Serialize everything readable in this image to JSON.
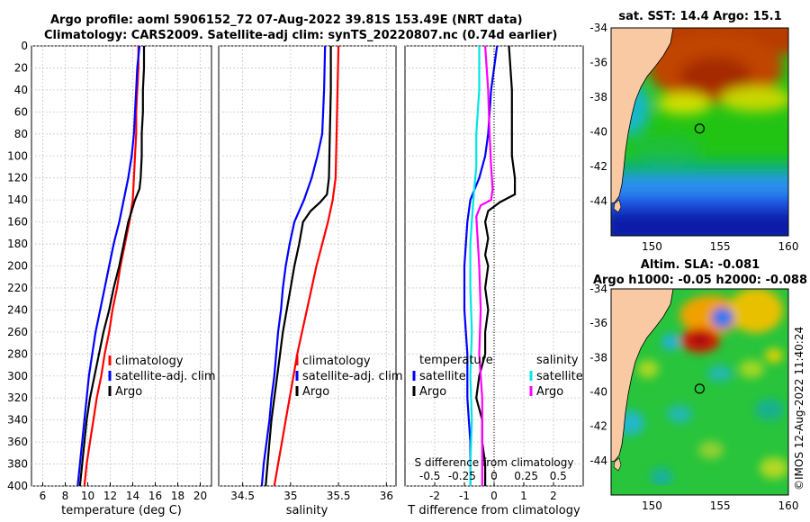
{
  "header": {
    "title_line1": "Argo profile: aoml 5906152_72 07-Aug-2022 39.81S 153.49E (NRT data)",
    "title_line2": "Climatology: CARS2009. Satellite-adj clim: synTS_20220807.nc (0.74d earlier)"
  },
  "credit": "©IMOS 12-Aug-2022 11:40:24",
  "colors": {
    "climatology": "#ff0000",
    "satellite": "#0000ff",
    "argo": "#000000",
    "sat_salinity": "#00e6e6",
    "argo_salinity": "#ff00ff",
    "land": "#f9c9a3",
    "grid": "#c8c8c8"
  },
  "chart_data": [
    {
      "type": "line",
      "name": "temperature-profile",
      "xlabel": "temperature (deg C)",
      "xlim": [
        5,
        21
      ],
      "xticks": [
        6,
        8,
        10,
        12,
        14,
        16,
        18,
        20
      ],
      "ylim": [
        0,
        400
      ],
      "yticks": [
        0,
        20,
        40,
        60,
        80,
        100,
        120,
        140,
        160,
        180,
        200,
        220,
        240,
        260,
        280,
        300,
        320,
        340,
        360,
        380,
        400
      ],
      "grid": true,
      "legend": [
        "climatology",
        "satellite-adj. clim",
        "Argo"
      ],
      "series": [
        {
          "name": "climatology",
          "color": "#ff0000",
          "points": [
            [
              14.5,
              0
            ],
            [
              14.5,
              20
            ],
            [
              14.4,
              40
            ],
            [
              14.3,
              60
            ],
            [
              14.3,
              80
            ],
            [
              14.2,
              100
            ],
            [
              14.1,
              120
            ],
            [
              14.0,
              140
            ],
            [
              13.7,
              160
            ],
            [
              13.3,
              180
            ],
            [
              12.9,
              200
            ],
            [
              12.6,
              220
            ],
            [
              12.2,
              240
            ],
            [
              11.9,
              260
            ],
            [
              11.5,
              280
            ],
            [
              11.2,
              300
            ],
            [
              10.8,
              320
            ],
            [
              10.5,
              340
            ],
            [
              10.2,
              360
            ],
            [
              9.9,
              380
            ],
            [
              9.7,
              400
            ]
          ]
        },
        {
          "name": "satellite-adj. clim",
          "color": "#0000ff",
          "points": [
            [
              14.6,
              0
            ],
            [
              14.4,
              20
            ],
            [
              14.3,
              40
            ],
            [
              14.2,
              60
            ],
            [
              14.1,
              80
            ],
            [
              13.9,
              100
            ],
            [
              13.6,
              120
            ],
            [
              13.2,
              140
            ],
            [
              12.8,
              160
            ],
            [
              12.3,
              180
            ],
            [
              11.9,
              200
            ],
            [
              11.5,
              220
            ],
            [
              11.1,
              240
            ],
            [
              10.7,
              260
            ],
            [
              10.4,
              280
            ],
            [
              10.1,
              300
            ],
            [
              9.9,
              320
            ],
            [
              9.7,
              340
            ],
            [
              9.5,
              360
            ],
            [
              9.3,
              380
            ],
            [
              9.1,
              400
            ]
          ]
        },
        {
          "name": "Argo",
          "color": "#000000",
          "points": [
            [
              15.0,
              0
            ],
            [
              15.0,
              20
            ],
            [
              14.9,
              40
            ],
            [
              14.9,
              60
            ],
            [
              14.8,
              80
            ],
            [
              14.8,
              100
            ],
            [
              14.7,
              120
            ],
            [
              14.6,
              130
            ],
            [
              14.2,
              140
            ],
            [
              13.9,
              150
            ],
            [
              13.6,
              160
            ],
            [
              13.2,
              180
            ],
            [
              12.8,
              200
            ],
            [
              12.3,
              220
            ],
            [
              11.9,
              240
            ],
            [
              11.4,
              260
            ],
            [
              11.0,
              280
            ],
            [
              10.6,
              300
            ],
            [
              10.2,
              320
            ],
            [
              9.9,
              340
            ],
            [
              9.7,
              360
            ],
            [
              9.5,
              380
            ],
            [
              9.3,
              400
            ]
          ]
        }
      ]
    },
    {
      "type": "line",
      "name": "salinity-profile",
      "xlabel": "salinity",
      "xlim": [
        34.25,
        36.1
      ],
      "xticks": [
        34.5,
        35,
        35.5,
        36
      ],
      "ylim": [
        0,
        400
      ],
      "grid": true,
      "legend": [
        "climatology",
        "satellite-adj. clim",
        "Argo"
      ],
      "series": [
        {
          "name": "climatology",
          "color": "#ff0000",
          "points": [
            [
              35.5,
              0
            ],
            [
              35.49,
              40
            ],
            [
              35.48,
              80
            ],
            [
              35.47,
              120
            ],
            [
              35.44,
              140
            ],
            [
              35.39,
              160
            ],
            [
              35.33,
              180
            ],
            [
              35.27,
              200
            ],
            [
              35.22,
              220
            ],
            [
              35.17,
              240
            ],
            [
              35.12,
              260
            ],
            [
              35.07,
              280
            ],
            [
              35.03,
              300
            ],
            [
              34.99,
              320
            ],
            [
              34.95,
              340
            ],
            [
              34.91,
              360
            ],
            [
              34.87,
              380
            ],
            [
              34.83,
              400
            ]
          ]
        },
        {
          "name": "satellite-adj. clim",
          "color": "#0000ff",
          "points": [
            [
              35.36,
              0
            ],
            [
              35.35,
              40
            ],
            [
              35.33,
              80
            ],
            [
              35.28,
              100
            ],
            [
              35.22,
              120
            ],
            [
              35.14,
              140
            ],
            [
              35.04,
              160
            ],
            [
              34.99,
              180
            ],
            [
              34.95,
              200
            ],
            [
              34.92,
              220
            ],
            [
              34.9,
              240
            ],
            [
              34.87,
              260
            ],
            [
              34.85,
              280
            ],
            [
              34.83,
              300
            ],
            [
              34.8,
              320
            ],
            [
              34.78,
              340
            ],
            [
              34.75,
              360
            ],
            [
              34.72,
              380
            ],
            [
              34.7,
              400
            ]
          ]
        },
        {
          "name": "Argo",
          "color": "#000000",
          "points": [
            [
              35.42,
              0
            ],
            [
              35.42,
              40
            ],
            [
              35.41,
              80
            ],
            [
              35.4,
              120
            ],
            [
              35.38,
              135
            ],
            [
              35.31,
              142
            ],
            [
              35.21,
              150
            ],
            [
              35.13,
              160
            ],
            [
              35.09,
              180
            ],
            [
              35.04,
              200
            ],
            [
              35.0,
              220
            ],
            [
              34.96,
              240
            ],
            [
              34.92,
              260
            ],
            [
              34.89,
              280
            ],
            [
              34.86,
              300
            ],
            [
              34.83,
              320
            ],
            [
              34.8,
              340
            ],
            [
              34.78,
              360
            ],
            [
              34.76,
              380
            ],
            [
              34.74,
              400
            ]
          ]
        }
      ]
    },
    {
      "type": "line",
      "name": "difference-profile",
      "xlabel": "T difference from climatology",
      "xlim": [
        -3,
        3
      ],
      "xticks": [
        -2,
        -1,
        0,
        1,
        2
      ],
      "second_axis_label": "S difference from climatology",
      "second_axis_ticks": [
        "-0.5",
        "-0.25",
        "0",
        "0.25",
        "0.5"
      ],
      "ylim": [
        0,
        400
      ],
      "grid": true,
      "legend_temperature": [
        "temperature",
        "satellite",
        "Argo"
      ],
      "legend_salinity": [
        "salinity",
        "satellite",
        "Argo"
      ],
      "series": [
        {
          "name": "temperature satellite",
          "color": "#0000ff",
          "points": [
            [
              0.1,
              0
            ],
            [
              -0.1,
              40
            ],
            [
              -0.2,
              80
            ],
            [
              -0.3,
              100
            ],
            [
              -0.5,
              120
            ],
            [
              -0.8,
              140
            ],
            [
              -0.9,
              160
            ],
            [
              -1.0,
              200
            ],
            [
              -1.0,
              240
            ],
            [
              -0.9,
              280
            ],
            [
              -0.9,
              320
            ],
            [
              -0.8,
              360
            ],
            [
              -0.8,
              400
            ]
          ]
        },
        {
          "name": "temperature Argo",
          "color": "#000000",
          "points": [
            [
              0.5,
              0
            ],
            [
              0.6,
              40
            ],
            [
              0.6,
              80
            ],
            [
              0.6,
              100
            ],
            [
              0.7,
              120
            ],
            [
              0.7,
              135
            ],
            [
              0.2,
              142
            ],
            [
              -0.2,
              150
            ],
            [
              -0.3,
              160
            ],
            [
              -0.2,
              175
            ],
            [
              -0.3,
              190
            ],
            [
              -0.2,
              200
            ],
            [
              -0.3,
              220
            ],
            [
              -0.2,
              240
            ],
            [
              -0.3,
              260
            ],
            [
              -0.3,
              280
            ],
            [
              -0.5,
              300
            ],
            [
              -0.6,
              320
            ],
            [
              -0.4,
              340
            ],
            [
              -0.4,
              360
            ],
            [
              -0.3,
              380
            ],
            [
              -0.3,
              400
            ]
          ]
        },
        {
          "name": "salinity satellite",
          "color": "#00e6e6",
          "points": [
            [
              -0.5,
              0
            ],
            [
              -0.5,
              40
            ],
            [
              -0.6,
              80
            ],
            [
              -0.6,
              110
            ],
            [
              -0.7,
              140
            ],
            [
              -0.8,
              180
            ],
            [
              -0.8,
              220
            ],
            [
              -0.75,
              260
            ],
            [
              -0.8,
              300
            ],
            [
              -0.75,
              340
            ],
            [
              -0.8,
              380
            ],
            [
              -0.8,
              400
            ]
          ]
        },
        {
          "name": "salinity Argo",
          "color": "#ff00ff",
          "points": [
            [
              -0.3,
              0
            ],
            [
              -0.2,
              40
            ],
            [
              -0.15,
              80
            ],
            [
              -0.1,
              110
            ],
            [
              -0.05,
              130
            ],
            [
              -0.1,
              140
            ],
            [
              -0.45,
              145
            ],
            [
              -0.6,
              155
            ],
            [
              -0.5,
              200
            ],
            [
              -0.45,
              240
            ],
            [
              -0.5,
              280
            ],
            [
              -0.4,
              320
            ],
            [
              -0.4,
              360
            ],
            [
              -0.4,
              400
            ]
          ]
        }
      ]
    },
    {
      "type": "heatmap",
      "name": "sst-map",
      "title": "sat. SST: 14.4 Argo: 15.1",
      "xlim": [
        147,
        160
      ],
      "ylim": [
        -46,
        -34
      ],
      "xticks": [
        150,
        155,
        160
      ],
      "yticks": [
        -34,
        -36,
        -38,
        -40,
        -42,
        -44
      ],
      "argo_position": [
        153.49,
        -39.81
      ]
    },
    {
      "type": "heatmap",
      "name": "sla-map",
      "title_line1": "Altim. SLA: -0.081",
      "title_line2": "Argo h1000: -0.05 h2000: -0.088",
      "xlim": [
        147,
        160
      ],
      "ylim": [
        -46,
        -34
      ],
      "xticks": [
        150,
        155,
        160
      ],
      "yticks": [
        -34,
        -36,
        -38,
        -40,
        -42,
        -44
      ],
      "argo_position": [
        153.49,
        -39.81
      ]
    }
  ]
}
